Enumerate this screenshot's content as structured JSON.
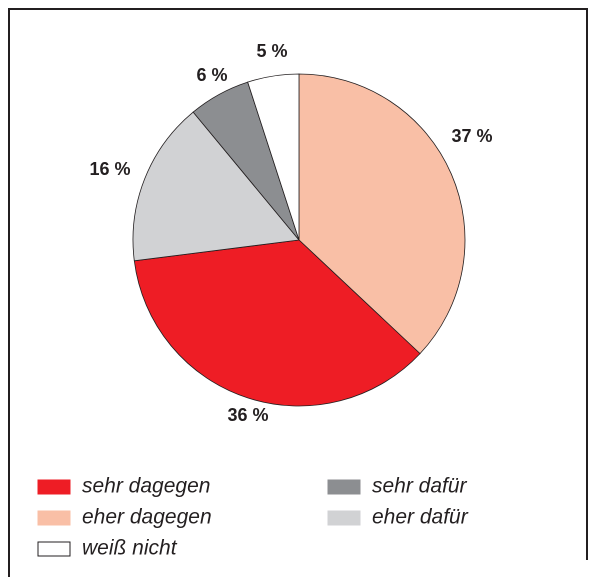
{
  "chart_data": {
    "type": "pie",
    "categories": [
      "eher dagegen",
      "sehr dagegen",
      "eher dafür",
      "sehr dafür",
      "weiß nicht"
    ],
    "values": [
      37,
      36,
      16,
      6,
      5
    ],
    "value_labels": [
      "37 %",
      "36 %",
      "16 %",
      "6 %",
      "5 %"
    ],
    "colors": [
      "#f9bfa6",
      "#ee1d25",
      "#d1d2d4",
      "#8c8e91",
      "#ffffff"
    ]
  }
}
